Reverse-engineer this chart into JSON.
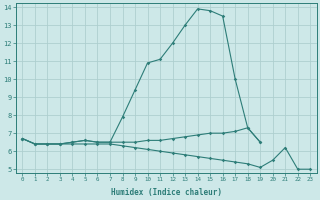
{
  "xlabel": "Humidex (Indice chaleur)",
  "x": [
    0,
    1,
    2,
    3,
    4,
    5,
    6,
    7,
    8,
    9,
    10,
    11,
    12,
    13,
    14,
    15,
    16,
    17,
    18,
    19,
    20,
    21,
    22,
    23
  ],
  "line1": [
    6.7,
    6.4,
    6.4,
    6.4,
    6.5,
    6.6,
    6.5,
    6.5,
    7.9,
    9.4,
    10.9,
    11.1,
    12.0,
    13.0,
    13.9,
    13.8,
    13.5,
    10.0,
    7.3,
    6.5,
    null,
    null,
    null,
    null
  ],
  "line2": [
    6.7,
    6.4,
    6.4,
    6.4,
    6.5,
    6.6,
    6.5,
    6.5,
    6.5,
    6.5,
    6.6,
    6.6,
    6.7,
    6.8,
    6.9,
    7.0,
    7.0,
    7.1,
    7.3,
    6.5,
    null,
    null,
    null,
    null
  ],
  "line3": [
    6.7,
    6.4,
    6.4,
    6.4,
    6.4,
    6.4,
    6.4,
    6.4,
    6.3,
    6.2,
    6.1,
    6.0,
    5.9,
    5.8,
    5.7,
    5.6,
    5.5,
    5.4,
    5.3,
    5.1,
    5.5,
    6.2,
    5.0,
    5.0
  ],
  "line_color": "#2d7d78",
  "bg_color": "#cde8e8",
  "grid_color": "#aecfcf",
  "xlim": [
    -0.5,
    23.5
  ],
  "ylim": [
    4.8,
    14.2
  ],
  "yticks": [
    5,
    6,
    7,
    8,
    9,
    10,
    11,
    12,
    13,
    14
  ],
  "xticks": [
    0,
    1,
    2,
    3,
    4,
    5,
    6,
    7,
    8,
    9,
    10,
    11,
    12,
    13,
    14,
    15,
    16,
    17,
    18,
    19,
    20,
    21,
    22,
    23
  ]
}
